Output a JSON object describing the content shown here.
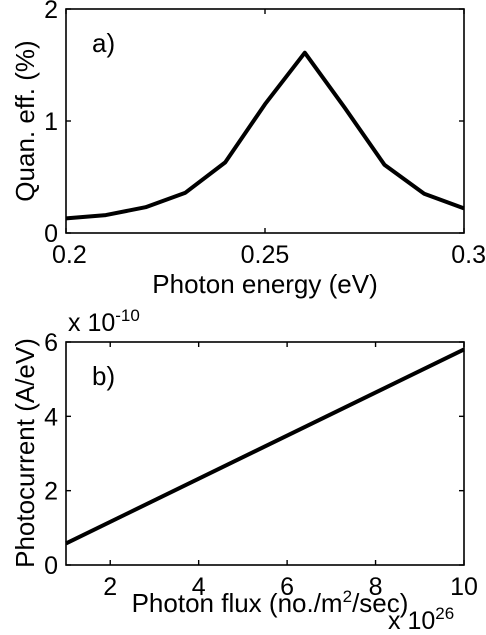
{
  "chart_data": [
    {
      "type": "line",
      "panel_label": "a)",
      "xlabel": "Photon energy (eV)",
      "ylabel": "Quan. eff. (%)",
      "xlim": [
        0.2,
        0.3
      ],
      "ylim": [
        0,
        2
      ],
      "xticks": [
        0.2,
        0.25,
        0.3
      ],
      "xtick_labels": [
        "0.2",
        "0.25",
        "0.3"
      ],
      "yticks": [
        0,
        1,
        2
      ],
      "ytick_labels": [
        "0",
        "1",
        "2"
      ],
      "grid": false,
      "series": [
        {
          "color": "#000000",
          "x": [
            0.2,
            0.21,
            0.22,
            0.23,
            0.24,
            0.25,
            0.26,
            0.27,
            0.28,
            0.29,
            0.3
          ],
          "y": [
            0.13,
            0.16,
            0.23,
            0.36,
            0.63,
            1.15,
            1.61,
            1.12,
            0.61,
            0.35,
            0.22
          ]
        }
      ]
    },
    {
      "type": "line",
      "panel_label": "b)",
      "xlabel": "Photon flux (no./m",
      "xlabel_sup": "2",
      "xlabel_end": "/sec)",
      "ylabel": "Photocurrent (A/eV)",
      "xlim": [
        1,
        10
      ],
      "ylim": [
        0,
        6
      ],
      "xticks": [
        2,
        4,
        6,
        8,
        10
      ],
      "xtick_labels": [
        "2",
        "4",
        "6",
        "8",
        "10"
      ],
      "yticks": [
        0,
        2,
        4,
        6
      ],
      "ytick_labels": [
        "0",
        "2",
        "4",
        "6"
      ],
      "x_multiplier_base": "x 10",
      "x_multiplier_exp": "26",
      "y_multiplier_base": "x 10",
      "y_multiplier_exp": "-10",
      "grid": false,
      "series": [
        {
          "color": "#000000",
          "x": [
            1,
            10
          ],
          "y": [
            0.58,
            5.8
          ]
        }
      ]
    }
  ]
}
